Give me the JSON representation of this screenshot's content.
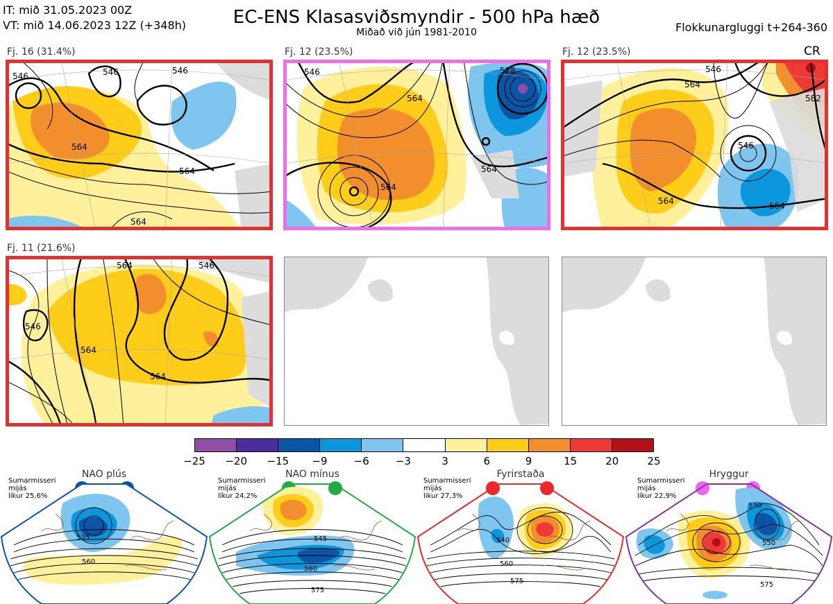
{
  "header": {
    "it_line": "IT: mið 31.05.2023 00Z",
    "vt_line": "VT: mið 14.06.2023 12Z  (+348h)",
    "title": "EC-ENS Klasasviðsmyndir - 500 hPa hæð",
    "subtitle": "Miðað við jún 1981-2010",
    "window": "Flokkunargluggi t+264-360"
  },
  "panels": [
    {
      "label": "Fj. 16 (31.4%)",
      "frame": "#e53030",
      "contours": [
        "546",
        "546",
        "546",
        "564",
        "564",
        "564"
      ]
    },
    {
      "label": "Fj. 12 (23.5%)",
      "frame": "#ee6ee8",
      "contours": [
        "546",
        "528",
        "564",
        "564",
        "564"
      ]
    },
    {
      "label": "Fj. 12 (23.5%)",
      "frame": "#e53030",
      "contours": [
        "546",
        "564",
        "546",
        "582",
        "564",
        "564"
      ],
      "tag": "CR"
    },
    {
      "label": "Fj. 11 (21.6%)",
      "frame": "#e53030",
      "contours": [
        "564",
        "546",
        "546",
        "564",
        "564"
      ]
    }
  ],
  "colorbar": {
    "colors": [
      "#8e4fa5",
      "#4a2f9a",
      "#0a55a5",
      "#0c96dc",
      "#7ec6ef",
      "#ffffff",
      "#fff19b",
      "#fdcd1a",
      "#f28e2b",
      "#ee3a36",
      "#b41018"
    ],
    "ticks": [
      "−25",
      "−20",
      "−15",
      "−9",
      "−6",
      "−3",
      "3",
      "6",
      "9",
      "15",
      "20",
      "25"
    ]
  },
  "regimes": [
    {
      "title": "NAO plús",
      "info": [
        "Sumarmisseri",
        "mijás",
        "líkur 25,6%"
      ],
      "color": "#0a55a5",
      "contours": [
        "535",
        "560"
      ]
    },
    {
      "title": "NAO mínus",
      "info": [
        "Sumarmisseri",
        "mijás",
        "líkur 24,2%"
      ],
      "color": "#22aa44",
      "contours": [
        "545",
        "560",
        "575"
      ]
    },
    {
      "title": "Fyrirstaða",
      "info": [
        "Sumarmisseri",
        "mijás",
        "líkur 27,3%"
      ],
      "color": "#e82a2a",
      "contours": [
        "540",
        "560",
        "575"
      ]
    },
    {
      "title": "Hryggur",
      "info": [
        "Sumarmisseri",
        "mijás",
        "líkur 22,9%"
      ],
      "color": "#ee66ee",
      "contours": [
        "530",
        "550",
        "575"
      ]
    }
  ]
}
